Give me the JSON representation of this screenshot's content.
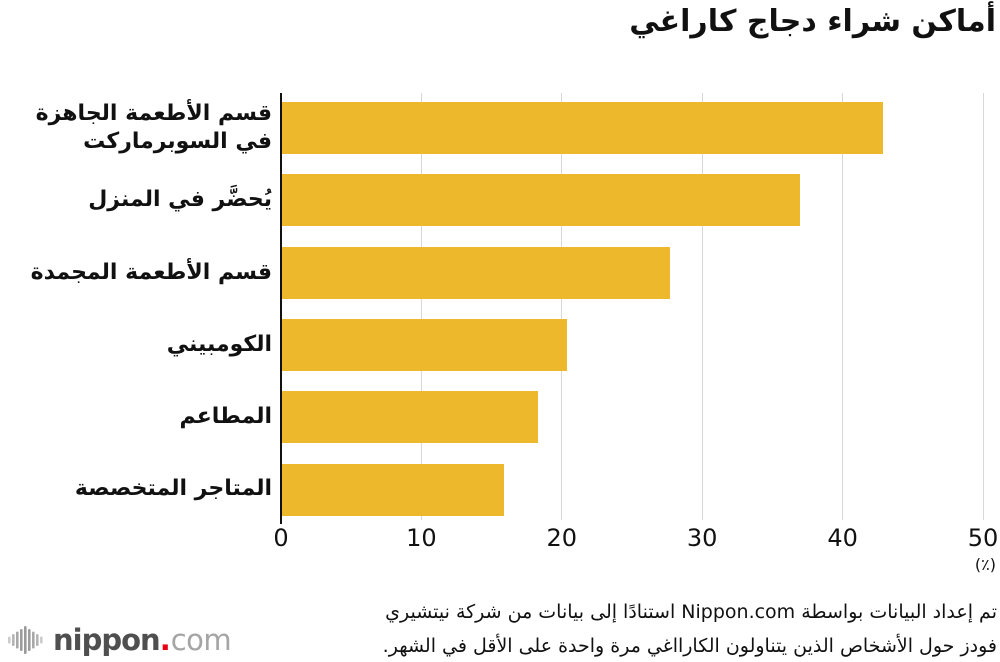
{
  "title": "أماكن شراء دجاج كاراغي",
  "chart_data": {
    "type": "bar",
    "orientation": "horizontal",
    "title": "أماكن شراء دجاج كاراغي",
    "categories": [
      "قسم الأطعمة الجاهزة في السوبرماركت",
      "يُحضَّر في المنزل",
      "قسم الأطعمة المجمدة",
      "الكومبيني",
      "المطاعم",
      "المتاجر المتخصصة"
    ],
    "values": [
      42.8,
      36.9,
      27.6,
      20.3,
      18.2,
      15.8
    ],
    "xlim": [
      0,
      50
    ],
    "xticks": [
      "0",
      "10",
      "20",
      "30",
      "40",
      "50"
    ],
    "unit_label": "(٪)",
    "bar_color": "#edb82c",
    "grid_color": "#d7d7d7",
    "axis_color": "#111111",
    "grid": true,
    "legend": false
  },
  "source": {
    "line1": "تم إعداد البيانات بواسطة Nippon.com استنادًا إلى بيانات من شركة نيتشيري",
    "line2": "فودز حول الأشخاص الذين يتناولون الكارااغي مرة واحدة على الأقل في الشهر."
  },
  "logo": {
    "icon": "waveform-bars-icon",
    "brand": "nippon",
    "dot": ".",
    "tld": "com",
    "brand_color": "#4f4f4f",
    "dot_color": "#e60012",
    "tld_color": "#a5a5a5"
  }
}
